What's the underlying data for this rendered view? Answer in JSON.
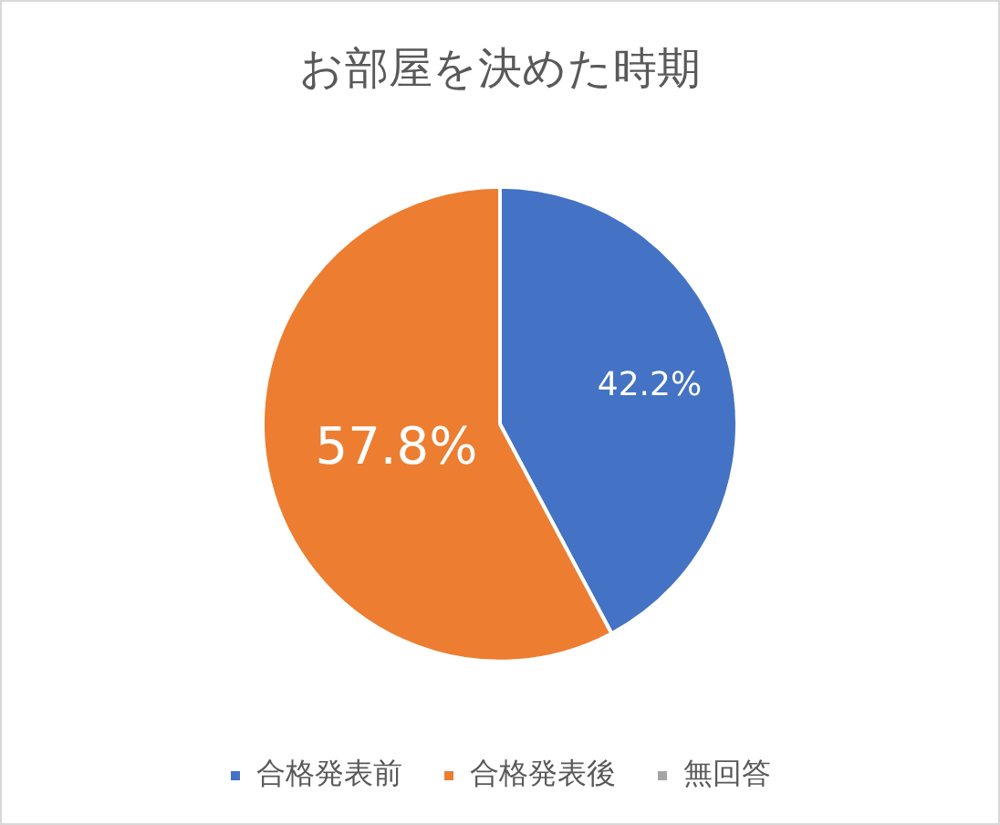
{
  "chart_data": {
    "type": "pie",
    "title": "お部屋を決めた時期",
    "categories": [
      "合格発表前",
      "合格発表後",
      "無回答"
    ],
    "values": [
      42.2,
      57.8,
      0
    ],
    "colors": [
      "#4472c4",
      "#ed7d31",
      "#a5a5a5"
    ],
    "value_labels": [
      "42.2%",
      "57.8%",
      null
    ],
    "legend": "bottom"
  }
}
